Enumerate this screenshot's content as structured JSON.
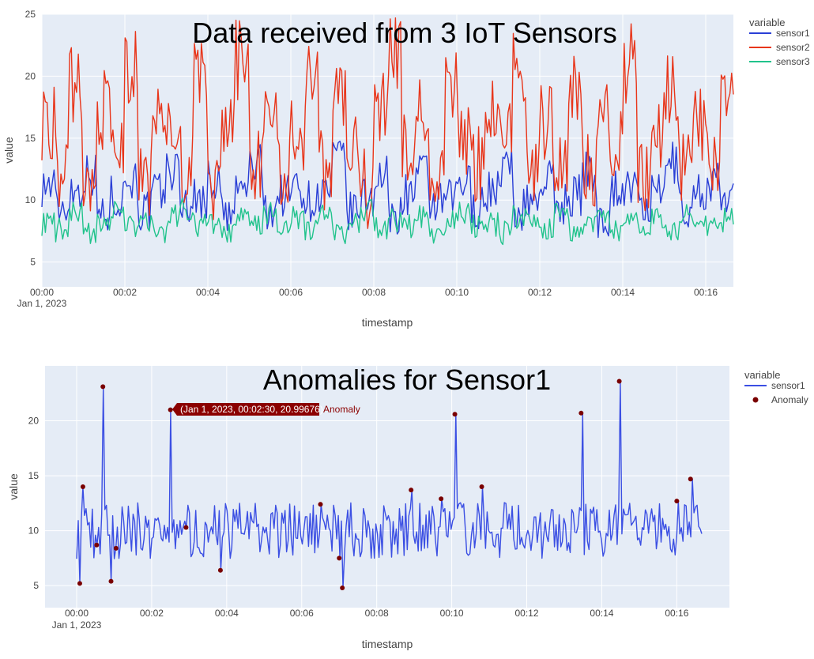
{
  "chart_data": [
    {
      "type": "line",
      "title": "Data received from 3 IoT Sensors",
      "xlabel": "timestamp",
      "ylabel": "value",
      "x_range": [
        "2023-01-01 00:00:00",
        "2023-01-01 00:16:40"
      ],
      "ylim": [
        3,
        25
      ],
      "y_ticks": [
        5,
        10,
        15,
        20,
        25
      ],
      "x_ticks": [
        "00:00",
        "00:02",
        "00:04",
        "00:06",
        "00:08",
        "00:10",
        "00:12",
        "00:14",
        "00:16"
      ],
      "x_tick_sublabel": "Jan 1, 2023",
      "legend_title": "variable",
      "legend_position": "right",
      "grid": true,
      "series": [
        {
          "name": "sensor1",
          "color": "#2a3fd6",
          "mean": 10,
          "spread": 1.6,
          "values": [
            11.2,
            9.5,
            10.8,
            12.1,
            8.9,
            10.3,
            11.7,
            9.1,
            10.6,
            12.4,
            9.8,
            10.1,
            11.5,
            8.6,
            10.9,
            12.8,
            9.3,
            10.4,
            11.1,
            9.9,
            10.7,
            13.2,
            9.0,
            10.2,
            11.8,
            8.8,
            10.5,
            12.0,
            9.6,
            10.0,
            11.3,
            9.4,
            10.8,
            12.6,
            9.2,
            10.1,
            11.6,
            9.7,
            10.4,
            12.2,
            8.7,
            10.9,
            11.0,
            9.5,
            10.3,
            13.0,
            9.1,
            10.6,
            11.4,
            9.8
          ]
        },
        {
          "name": "sensor2",
          "color": "#e8361b",
          "mean": 15,
          "spread": 3,
          "values": [
            16.5,
            12.2,
            19.1,
            10.8,
            17.3,
            13.9,
            20.4,
            11.5,
            18.2,
            14.7,
            12.9,
            19.8,
            10.6,
            16.1,
            21.3,
            13.2,
            17.8,
            11.9,
            15.6,
            20.0,
            12.4,
            18.7,
            14.1,
            10.9,
            17.0,
            22.1,
            13.6,
            16.8,
            11.2,
            19.4,
            14.9,
            12.7,
            18.0,
            15.3,
            20.8,
            11.7,
            16.4,
            13.5,
            19.6,
            12.1,
            17.5,
            14.4,
            21.0,
            11.4,
            15.9,
            18.9,
            13.1,
            16.2,
            12.6,
            17.7
          ]
        },
        {
          "name": "sensor3",
          "color": "#21c38c",
          "mean": 8,
          "spread": 0.9,
          "values": [
            8.1,
            7.6,
            8.9,
            7.2,
            8.4,
            9.1,
            7.8,
            8.3,
            7.4,
            8.7,
            9.3,
            7.9,
            8.2,
            7.1,
            8.6,
            8.0,
            9.0,
            7.5,
            8.5,
            7.7,
            8.8,
            7.3,
            8.1,
            9.2,
            7.6,
            8.4,
            7.9,
            8.7,
            7.2,
            8.3,
            9.0,
            7.8,
            8.0,
            7.4,
            8.6,
            8.2,
            7.7,
            8.9,
            7.5,
            8.1,
            9.1,
            7.6,
            8.3,
            7.9,
            8.5,
            7.3,
            8.8,
            8.0,
            7.7,
            8.4
          ]
        }
      ]
    },
    {
      "type": "line",
      "title": "Anomalies for Sensor1",
      "xlabel": "timestamp",
      "ylabel": "value",
      "x_range": [
        "2023-01-01 00:00:00",
        "2023-01-01 00:16:40"
      ],
      "ylim": [
        3,
        25
      ],
      "y_ticks": [
        5,
        10,
        15,
        20
      ],
      "x_ticks": [
        "00:00",
        "00:02",
        "00:04",
        "00:06",
        "00:08",
        "00:10",
        "00:12",
        "00:14",
        "00:16"
      ],
      "x_tick_sublabel": "Jan 1, 2023",
      "legend_title": "variable",
      "legend_position": "right",
      "grid": true,
      "series": [
        {
          "name": "sensor1",
          "color": "#3b4fe3",
          "mean": 10,
          "spread": 1.6
        },
        {
          "name": "Anomaly",
          "color": "#7a0000",
          "mode": "markers",
          "points": [
            {
              "t": "00:00:05",
              "y": 5.2
            },
            {
              "t": "00:00:10",
              "y": 14.0
            },
            {
              "t": "00:00:32",
              "y": 8.7
            },
            {
              "t": "00:00:42",
              "y": 23.1
            },
            {
              "t": "00:00:55",
              "y": 5.4
            },
            {
              "t": "00:01:03",
              "y": 8.4
            },
            {
              "t": "00:02:30",
              "y": 20.99676
            },
            {
              "t": "00:02:55",
              "y": 10.3
            },
            {
              "t": "00:03:50",
              "y": 6.4
            },
            {
              "t": "00:06:30",
              "y": 12.4
            },
            {
              "t": "00:07:00",
              "y": 7.5
            },
            {
              "t": "00:07:05",
              "y": 4.8
            },
            {
              "t": "00:08:55",
              "y": 13.7
            },
            {
              "t": "00:09:43",
              "y": 12.9
            },
            {
              "t": "00:10:05",
              "y": 20.6
            },
            {
              "t": "00:10:48",
              "y": 14.0
            },
            {
              "t": "00:13:27",
              "y": 20.7
            },
            {
              "t": "00:14:28",
              "y": 23.6
            },
            {
              "t": "00:16:00",
              "y": 12.7
            },
            {
              "t": "00:16:22",
              "y": 14.7
            }
          ]
        }
      ],
      "hover": {
        "label": "(Jan 1, 2023, 00:02:30, 20.99676)",
        "name": "Anomaly"
      }
    }
  ]
}
